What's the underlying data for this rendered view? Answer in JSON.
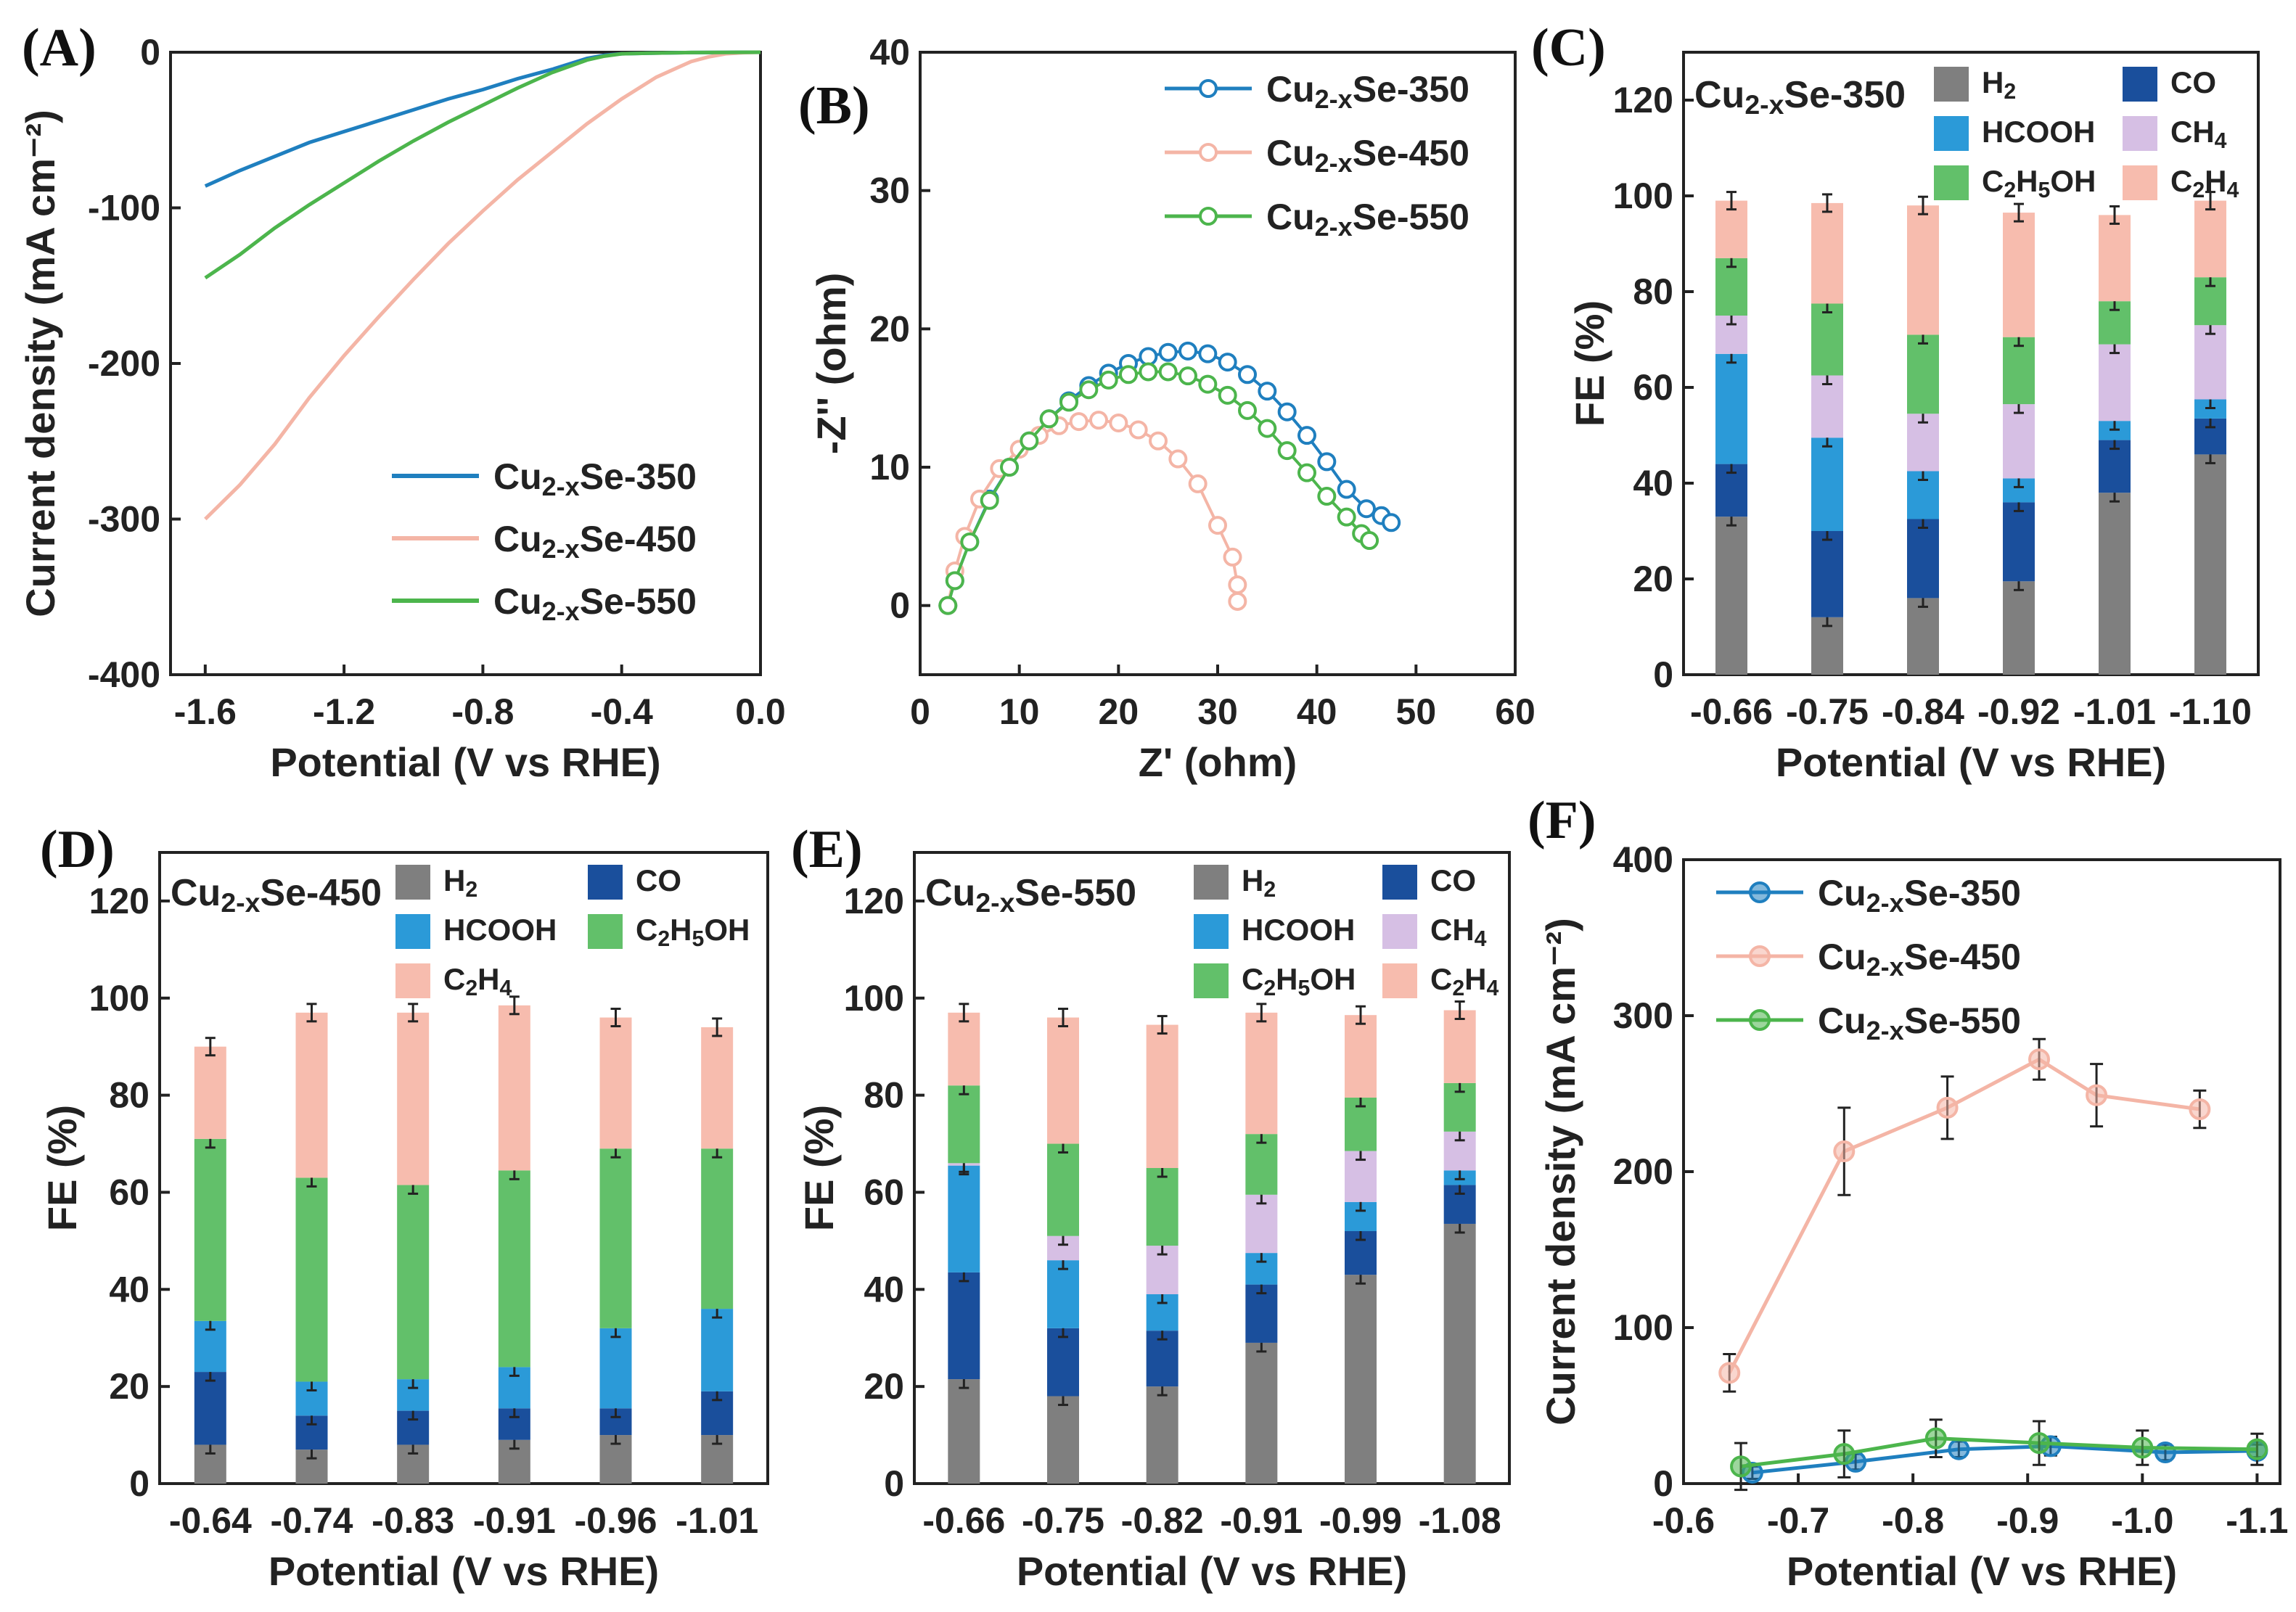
{
  "colors": {
    "s350": "#1f7fbf",
    "s450": "#f4b5a6",
    "s550": "#4cb54c",
    "H2": "#7f7f7f",
    "CO": "#1a4f9c",
    "HCOOH": "#2b9ad8",
    "CH4": "#d6bfe4",
    "C2H5OH": "#62c06a",
    "C2H4": "#f7bcae"
  },
  "chart_data": [
    {
      "panel": "(A)",
      "type": "line",
      "xlabel": "Potential (V vs RHE)",
      "ylabel": "Current density (mA cm⁻²)",
      "xlim": [
        -1.7,
        0.0
      ],
      "ylim": [
        -400,
        0
      ],
      "xticks": [
        "-1.6",
        "-1.2",
        "-0.8",
        "-0.4",
        "0.0"
      ],
      "yticks": [
        "0",
        "-100",
        "-200",
        "-300",
        "-400"
      ],
      "series": [
        {
          "name": "Cu2-xSe-350",
          "key": "s350",
          "x": [
            -1.6,
            -1.5,
            -1.4,
            -1.3,
            -1.2,
            -1.1,
            -1.0,
            -0.9,
            -0.8,
            -0.7,
            -0.6,
            -0.5,
            -0.45,
            -0.4,
            -0.3,
            -0.2,
            -0.1,
            0.0
          ],
          "y": [
            -86,
            -76,
            -67,
            -58,
            -51,
            -44,
            -37,
            -30,
            -24,
            -17,
            -11,
            -4,
            -2,
            -1,
            -0.5,
            -0.2,
            -0.1,
            0
          ]
        },
        {
          "name": "Cu2-xSe-450",
          "key": "s450",
          "x": [
            -1.6,
            -1.5,
            -1.4,
            -1.3,
            -1.2,
            -1.1,
            -1.0,
            -0.9,
            -0.8,
            -0.7,
            -0.6,
            -0.5,
            -0.4,
            -0.3,
            -0.2,
            -0.15,
            -0.1,
            -0.05,
            0.0
          ],
          "y": [
            -300,
            -278,
            -252,
            -222,
            -195,
            -170,
            -146,
            -123,
            -102,
            -82,
            -64,
            -46,
            -30,
            -16,
            -6,
            -3,
            -1,
            -0.3,
            0
          ]
        },
        {
          "name": "Cu2-xSe-550",
          "key": "s550",
          "x": [
            -1.6,
            -1.5,
            -1.4,
            -1.3,
            -1.2,
            -1.1,
            -1.0,
            -0.9,
            -0.8,
            -0.7,
            -0.6,
            -0.5,
            -0.45,
            -0.4,
            -0.3,
            -0.2,
            -0.1,
            0.0
          ],
          "y": [
            -145,
            -130,
            -113,
            -98,
            -84,
            -70,
            -57,
            -45,
            -34,
            -23,
            -13,
            -5,
            -2.5,
            -1,
            -0.5,
            -0.2,
            -0.1,
            0
          ]
        }
      ]
    },
    {
      "panel": "(B)",
      "type": "scatter",
      "xlabel": "Z' (ohm)",
      "ylabel": "-Z'' (ohm)",
      "xlim": [
        0,
        60
      ],
      "ylim": [
        -5,
        40
      ],
      "xticks": [
        "0",
        "10",
        "20",
        "30",
        "40",
        "50",
        "60"
      ],
      "yticks": [
        "0",
        "10",
        "20",
        "30",
        "40"
      ],
      "series": [
        {
          "name": "Cu2-xSe-350",
          "key": "s350",
          "x": [
            2.8,
            3.5,
            5,
            7,
            9,
            11,
            13,
            15,
            17,
            19,
            21,
            23,
            25,
            27,
            29,
            31,
            33,
            35,
            37,
            39,
            41,
            43,
            45,
            46.5,
            47.5
          ],
          "y": [
            0,
            1.8,
            4.6,
            7.7,
            10,
            11.9,
            13.5,
            14.8,
            15.9,
            16.8,
            17.5,
            18,
            18.3,
            18.4,
            18.2,
            17.6,
            16.7,
            15.5,
            14,
            12.3,
            10.4,
            8.4,
            7,
            6.5,
            6
          ]
        },
        {
          "name": "Cu2-xSe-450",
          "key": "s450",
          "x": [
            2.8,
            3.5,
            4.5,
            6,
            8,
            10,
            12,
            14,
            16,
            18,
            20,
            22,
            24,
            26,
            28,
            30,
            31.5,
            32,
            32
          ],
          "y": [
            0,
            2.5,
            5,
            7.7,
            9.9,
            11.3,
            12.3,
            13,
            13.3,
            13.4,
            13.2,
            12.7,
            11.9,
            10.6,
            8.8,
            5.8,
            3.5,
            1.5,
            0.3
          ]
        },
        {
          "name": "Cu2-xSe-550",
          "key": "s550",
          "x": [
            2.8,
            3.5,
            5,
            7,
            9,
            11,
            13,
            15,
            17,
            19,
            21,
            23,
            25,
            27,
            29,
            31,
            33,
            35,
            37,
            39,
            41,
            43,
            44.5,
            45.3
          ],
          "y": [
            0,
            1.8,
            4.6,
            7.6,
            10,
            11.9,
            13.5,
            14.7,
            15.6,
            16.3,
            16.7,
            16.9,
            16.9,
            16.6,
            16,
            15.2,
            14.1,
            12.8,
            11.2,
            9.6,
            7.9,
            6.4,
            5.2,
            4.7
          ]
        }
      ]
    },
    {
      "panel": "(C)",
      "type": "bar",
      "stacked": true,
      "title": "Cu2-xSe-350",
      "xlabel": "Potential (V vs RHE)",
      "ylabel": "FE (%)",
      "ylim": [
        0,
        130
      ],
      "yticks": [
        "0",
        "20",
        "40",
        "60",
        "80",
        "100",
        "120"
      ],
      "categories": [
        "-0.66",
        "-0.75",
        "-0.84",
        "-0.92",
        "-1.01",
        "-1.10"
      ],
      "series": [
        {
          "name": "H2",
          "key": "H2",
          "values": [
            33,
            12,
            16,
            19.5,
            38,
            46
          ]
        },
        {
          "name": "CO",
          "key": "CO",
          "values": [
            11,
            18,
            16.5,
            16.5,
            11,
            7.5
          ]
        },
        {
          "name": "HCOOH",
          "key": "HCOOH",
          "values": [
            23,
            19.5,
            10,
            5,
            4,
            4
          ]
        },
        {
          "name": "CH4",
          "key": "CH4",
          "values": [
            8,
            13,
            12,
            15.5,
            16,
            15.5
          ]
        },
        {
          "name": "C2H5OH",
          "key": "C2H5OH",
          "values": [
            12,
            15,
            16.5,
            14,
            9,
            10
          ]
        },
        {
          "name": "C2H4",
          "key": "C2H4",
          "values": [
            12,
            21,
            27,
            26,
            18,
            16
          ]
        }
      ],
      "legend": [
        "H2",
        "CO",
        "HCOOH",
        "CH4",
        "C2H5OH",
        "C2H4"
      ]
    },
    {
      "panel": "(D)",
      "type": "bar",
      "stacked": true,
      "title": "Cu2-xSe-450",
      "xlabel": "Potential (V vs RHE)",
      "ylabel": "FE (%)",
      "ylim": [
        0,
        130
      ],
      "yticks": [
        "0",
        "20",
        "40",
        "60",
        "80",
        "100",
        "120"
      ],
      "categories": [
        "-0.64",
        "-0.74",
        "-0.83",
        "-0.91",
        "-0.96",
        "-1.01"
      ],
      "series": [
        {
          "name": "H2",
          "key": "H2",
          "values": [
            8,
            7,
            8,
            9,
            10,
            10
          ]
        },
        {
          "name": "CO",
          "key": "CO",
          "values": [
            15,
            7,
            7,
            6.5,
            5.5,
            9
          ]
        },
        {
          "name": "HCOOH",
          "key": "HCOOH",
          "values": [
            10.5,
            7,
            6.5,
            8.5,
            16.5,
            17
          ]
        },
        {
          "name": "C2H5OH",
          "key": "C2H5OH",
          "values": [
            37.5,
            42,
            40,
            40.5,
            37,
            33
          ]
        },
        {
          "name": "C2H4",
          "key": "C2H4",
          "values": [
            19,
            34,
            35.5,
            34,
            27,
            25
          ]
        }
      ],
      "legend": [
        "H2",
        "CO",
        "HCOOH",
        "C2H5OH",
        "C2H4"
      ]
    },
    {
      "panel": "(E)",
      "type": "bar",
      "stacked": true,
      "title": "Cu2-xSe-550",
      "xlabel": "Potential (V vs RHE)",
      "ylabel": "FE (%)",
      "ylim": [
        0,
        130
      ],
      "yticks": [
        "0",
        "20",
        "40",
        "60",
        "80",
        "100",
        "120"
      ],
      "categories": [
        "-0.66",
        "-0.75",
        "-0.82",
        "-0.91",
        "-0.99",
        "-1.08"
      ],
      "series": [
        {
          "name": "H2",
          "key": "H2",
          "values": [
            21.5,
            18,
            20,
            29,
            43,
            53.5
          ]
        },
        {
          "name": "CO",
          "key": "CO",
          "values": [
            22,
            14,
            11.5,
            12,
            9,
            8
          ]
        },
        {
          "name": "HCOOH",
          "key": "HCOOH",
          "values": [
            22,
            14,
            7.5,
            6.5,
            6,
            3
          ]
        },
        {
          "name": "CH4",
          "key": "CH4",
          "values": [
            0.5,
            5,
            10,
            12,
            10.5,
            8
          ]
        },
        {
          "name": "C2H5OH",
          "key": "C2H5OH",
          "values": [
            16,
            19,
            16,
            12.5,
            11,
            10
          ]
        },
        {
          "name": "C2H4",
          "key": "C2H4",
          "values": [
            15,
            26,
            29.5,
            25,
            17,
            15
          ]
        }
      ],
      "legend": [
        "H2",
        "CO",
        "HCOOH",
        "CH4",
        "C2H5OH",
        "C2H4"
      ]
    },
    {
      "panel": "(F)",
      "type": "line",
      "xlabel": "Potential (V vs RHE)",
      "ylabel": "Current density (mA cm⁻²)",
      "xlim": [
        -0.6,
        -1.12
      ],
      "ylim": [
        0,
        400
      ],
      "xticks": [
        "-0.6",
        "-0.7",
        "-0.8",
        "-0.9",
        "-1.0",
        "-1.1"
      ],
      "yticks": [
        "0",
        "100",
        "200",
        "300",
        "400"
      ],
      "series": [
        {
          "name": "Cu2-xSe-350",
          "key": "s350",
          "x": [
            -0.66,
            -0.75,
            -0.84,
            -0.92,
            -1.02,
            -1.1
          ],
          "y": [
            7,
            14,
            22,
            24,
            20,
            21
          ],
          "err": [
            4,
            5,
            5,
            6,
            5,
            4
          ]
        },
        {
          "name": "Cu2-xSe-450",
          "key": "s450",
          "x": [
            -0.64,
            -0.74,
            -0.83,
            -0.91,
            -0.96,
            -1.05
          ],
          "y": [
            71,
            213,
            241,
            272,
            249,
            240
          ],
          "err": [
            12,
            28,
            20,
            13,
            20,
            12
          ]
        },
        {
          "name": "Cu2-xSe-550",
          "key": "s550",
          "x": [
            -0.65,
            -0.74,
            -0.82,
            -0.91,
            -1.0,
            -1.1
          ],
          "y": [
            11,
            19,
            29,
            26,
            23,
            22
          ],
          "err": [
            15,
            15,
            12,
            14,
            11,
            10
          ]
        }
      ]
    }
  ],
  "legend_labels": {
    "s350": {
      "main": "Cu",
      "sub": "2-x",
      "rest": "Se-350"
    },
    "s450": {
      "main": "Cu",
      "sub": "2-x",
      "rest": "Se-450"
    },
    "s550": {
      "main": "Cu",
      "sub": "2-x",
      "rest": "Se-550"
    }
  },
  "product_labels": {
    "H2": {
      "main": "H",
      "sub": "2",
      "rest": ""
    },
    "CO": {
      "main": "CO",
      "sub": "",
      "rest": ""
    },
    "HCOOH": {
      "main": "HCOOH",
      "sub": "",
      "rest": ""
    },
    "CH4": {
      "main": "CH",
      "sub": "4",
      "rest": ""
    },
    "C2H5OH": {
      "main": "C",
      "sub": "2",
      "rest": "H",
      "sub2": "5",
      "rest2": "OH"
    },
    "C2H4": {
      "main": "C",
      "sub": "2",
      "rest": "H",
      "sub2": "4",
      "rest2": ""
    }
  },
  "panel_labels": [
    "(A)",
    "(B)",
    "(C)",
    "(D)",
    "(E)",
    "(F)"
  ]
}
